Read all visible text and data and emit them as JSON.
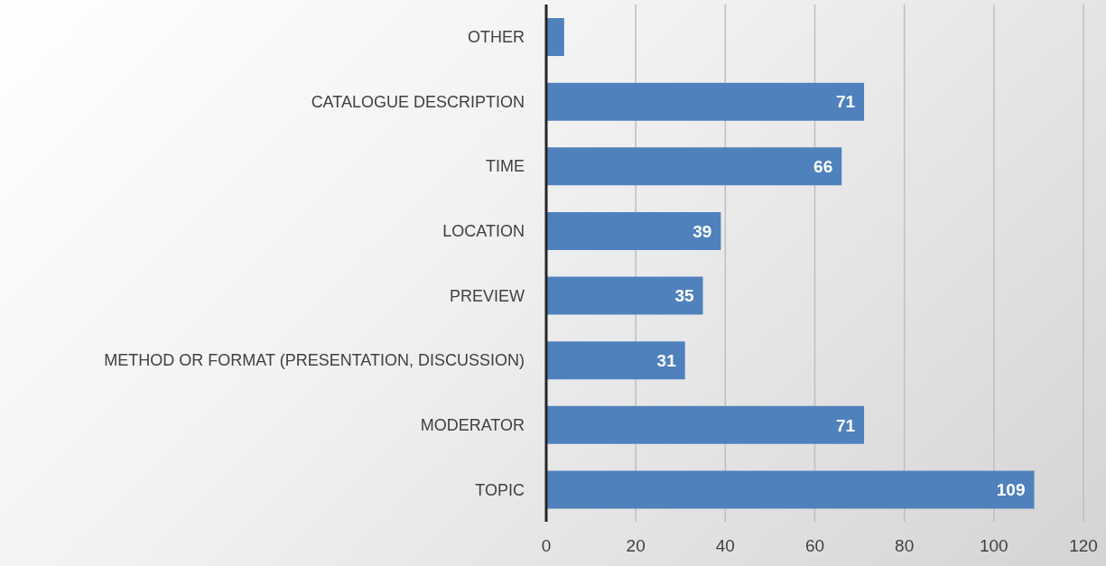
{
  "chart_data": {
    "type": "bar",
    "orientation": "horizontal",
    "categories": [
      "OTHER",
      "CATALOGUE DESCRIPTION",
      "TIME",
      "LOCATION",
      "PREVIEW",
      "METHOD OR FORMAT (PRESENTATION, DISCUSSION)",
      "MODERATOR",
      "TOPIC"
    ],
    "values": [
      4,
      71,
      66,
      39,
      35,
      31,
      71,
      109
    ],
    "value_labels": [
      null,
      "71",
      "66",
      "39",
      "35",
      "31",
      "71",
      "109"
    ],
    "color": "#4f81bd",
    "xlim": [
      0,
      120
    ],
    "xticks": [
      0,
      20,
      40,
      60,
      80,
      100,
      120
    ],
    "grid": "x"
  }
}
